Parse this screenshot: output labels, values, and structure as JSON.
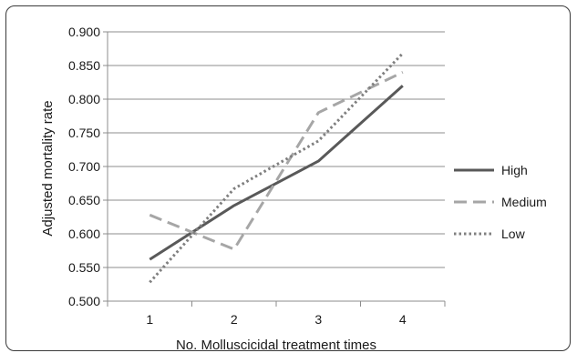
{
  "chart_data": {
    "type": "line",
    "title": "",
    "xlabel": "No. Molluscicidal  treatment times",
    "ylabel": "Adjusted  mortality rate",
    "categories": [
      "1",
      "2",
      "3",
      "4"
    ],
    "ylim": [
      0.5,
      0.9
    ],
    "yticks": [
      "0.500",
      "0.550",
      "0.600",
      "0.650",
      "0.700",
      "0.750",
      "0.800",
      "0.850",
      "0.900"
    ],
    "grid": "horizontal",
    "legend_position": "right",
    "series": [
      {
        "name": "High",
        "values": [
          0.562,
          0.642,
          0.708,
          0.82
        ],
        "color": "#595959",
        "style": "solid"
      },
      {
        "name": "Medium",
        "values": [
          0.628,
          0.577,
          0.78,
          0.84
        ],
        "color": "#a6a6a6",
        "style": "dashed"
      },
      {
        "name": "Low",
        "values": [
          0.528,
          0.667,
          0.738,
          0.868
        ],
        "color": "#7f7f7f",
        "style": "dotted"
      }
    ]
  }
}
